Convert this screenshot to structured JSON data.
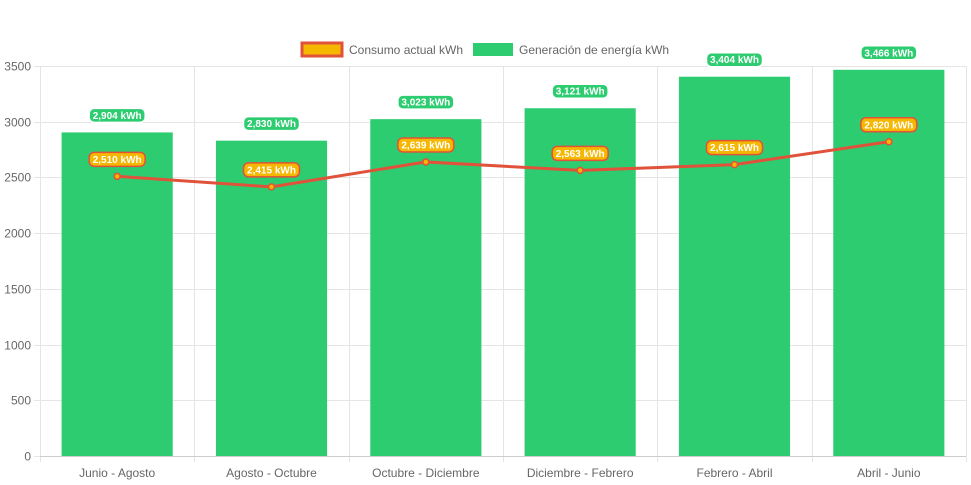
{
  "chart_data": {
    "type": "bar",
    "categories": [
      "Junio - Agosto",
      "Agosto - Octubre",
      "Octubre - Diciembre",
      "Diciembre - Febrero",
      "Febrero - Abril",
      "Abril - Junio"
    ],
    "series": [
      {
        "name": "Consumo actual kWh",
        "type": "line",
        "values": [
          2510,
          2415,
          2639,
          2563,
          2615,
          2820
        ],
        "labels": [
          "2,510 kWh",
          "2,415 kWh",
          "2,639 kWh",
          "2,563 kWh",
          "2,615 kWh",
          "2,820 kWh"
        ],
        "color": "#e0523a",
        "label_color": "#f5b700"
      },
      {
        "name": "Generación de energía kWh",
        "type": "bar",
        "values": [
          2904,
          2830,
          3023,
          3121,
          3404,
          3466
        ],
        "labels": [
          "2,904 kWh",
          "2,830 kWh",
          "3,023 kWh",
          "3,121 kWh",
          "3,404 kWh",
          "3,466 kWh"
        ],
        "color": "#2ecc71"
      }
    ],
    "ylim": [
      0,
      3500
    ],
    "yticks": [
      "0",
      "500",
      "1000",
      "1500",
      "2000",
      "2500",
      "3000",
      "3500"
    ],
    "grid": true,
    "legend_position": "top-center",
    "title": "",
    "xlabel": "",
    "ylabel": ""
  }
}
